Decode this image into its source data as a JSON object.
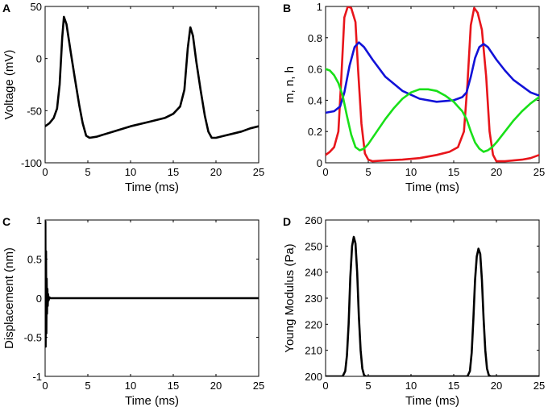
{
  "chart_data": [
    {
      "panel": "A",
      "type": "line",
      "xlabel": "Time (ms)",
      "ylabel": "Voltage (mV)",
      "xlim": [
        0,
        25
      ],
      "ylim": [
        -100,
        50
      ],
      "xticks": [
        0,
        5,
        10,
        15,
        20,
        25
      ],
      "yticks": [
        -100,
        -50,
        0,
        50
      ],
      "grid": false,
      "series": [
        {
          "name": "Voltage",
          "color": "#000000",
          "x": [
            0,
            0.5,
            1.0,
            1.4,
            1.7,
            2.0,
            2.2,
            2.5,
            3.0,
            3.5,
            4.0,
            4.4,
            4.8,
            5.2,
            6,
            8,
            10,
            12,
            14,
            15,
            15.8,
            16.3,
            16.7,
            17.0,
            17.3,
            17.7,
            18.2,
            18.7,
            19.1,
            19.5,
            20,
            21,
            22,
            23,
            24,
            25
          ],
          "y": [
            -65,
            -62,
            -57,
            -48,
            -25,
            20,
            40,
            33,
            6,
            -20,
            -45,
            -62,
            -74,
            -76,
            -75,
            -70,
            -65,
            -61,
            -57,
            -53,
            -46,
            -30,
            10,
            30,
            22,
            -3,
            -30,
            -55,
            -70,
            -76,
            -76,
            -74,
            -72,
            -70,
            -67,
            -65
          ]
        }
      ]
    },
    {
      "panel": "B",
      "type": "line",
      "xlabel": "Time (ms)",
      "ylabel": "m, n, h",
      "xlim": [
        0,
        25
      ],
      "ylim": [
        0,
        1
      ],
      "xticks": [
        0,
        5,
        10,
        15,
        20,
        25
      ],
      "yticks": [
        0,
        0.2,
        0.4,
        0.6,
        0.8,
        1
      ],
      "grid": false,
      "series": [
        {
          "name": "m",
          "color": "#e8151b",
          "x": [
            0,
            0.5,
            1.0,
            1.5,
            1.8,
            2.2,
            2.6,
            3.0,
            3.5,
            3.8,
            4.2,
            4.6,
            5.0,
            5.5,
            7,
            9,
            11,
            13,
            14.5,
            15.5,
            16.2,
            16.6,
            17.0,
            17.4,
            17.8,
            18.3,
            18.8,
            19.2,
            19.6,
            20,
            21,
            22,
            23,
            24,
            25
          ],
          "y": [
            0.05,
            0.07,
            0.1,
            0.2,
            0.5,
            0.93,
            1.0,
            0.99,
            0.9,
            0.6,
            0.25,
            0.06,
            0.02,
            0.01,
            0.015,
            0.02,
            0.03,
            0.05,
            0.07,
            0.1,
            0.2,
            0.5,
            0.88,
            0.99,
            0.96,
            0.85,
            0.55,
            0.2,
            0.05,
            0.01,
            0.01,
            0.015,
            0.02,
            0.03,
            0.05
          ]
        },
        {
          "name": "n",
          "color": "#1212d8",
          "x": [
            0,
            1,
            1.7,
            2.2,
            2.8,
            3.4,
            3.9,
            4.5,
            5.5,
            7,
            9,
            11,
            13,
            15,
            16,
            16.5,
            17,
            17.5,
            18,
            18.5,
            19,
            20,
            21,
            22,
            23,
            24,
            25
          ],
          "y": [
            0.32,
            0.33,
            0.36,
            0.45,
            0.62,
            0.74,
            0.77,
            0.74,
            0.66,
            0.55,
            0.46,
            0.41,
            0.39,
            0.4,
            0.42,
            0.45,
            0.55,
            0.67,
            0.74,
            0.76,
            0.74,
            0.66,
            0.59,
            0.53,
            0.49,
            0.45,
            0.43
          ]
        },
        {
          "name": "h",
          "color": "#19e019",
          "x": [
            0,
            0.5,
            1.0,
            1.5,
            2.0,
            2.5,
            3.0,
            3.5,
            4.0,
            4.5,
            5.0,
            6,
            7,
            8,
            9,
            10,
            11,
            12,
            13,
            14,
            15,
            15.5,
            16,
            16.5,
            17,
            17.5,
            18,
            18.5,
            19,
            19.5,
            20,
            21,
            22,
            23,
            24,
            25
          ],
          "y": [
            0.6,
            0.59,
            0.56,
            0.51,
            0.43,
            0.3,
            0.18,
            0.1,
            0.08,
            0.09,
            0.12,
            0.2,
            0.28,
            0.35,
            0.41,
            0.45,
            0.47,
            0.47,
            0.46,
            0.43,
            0.39,
            0.36,
            0.33,
            0.28,
            0.2,
            0.13,
            0.09,
            0.07,
            0.08,
            0.1,
            0.13,
            0.2,
            0.27,
            0.33,
            0.38,
            0.42
          ]
        }
      ]
    },
    {
      "panel": "C",
      "type": "line",
      "xlabel": "Time (ms)",
      "ylabel": "Displacement (nm)",
      "xlim": [
        0,
        25
      ],
      "ylim": [
        -1,
        1
      ],
      "xticks": [
        0,
        5,
        10,
        15,
        20,
        25
      ],
      "yticks": [
        -1,
        -0.5,
        0,
        0.5,
        1
      ],
      "ytick_labels": [
        "-1",
        "-0.5",
        "0",
        "0.5",
        "1"
      ],
      "grid": false,
      "series": [
        {
          "name": "Displacement",
          "color": "#000000",
          "x": [
            0,
            0.03,
            0.06,
            0.1,
            0.14,
            0.18,
            0.22,
            0.26,
            0.3,
            0.35,
            0.4,
            0.5,
            0.6,
            1,
            5,
            10,
            15,
            20,
            25
          ],
          "y": [
            0,
            0.98,
            -0.62,
            0.6,
            -0.45,
            0.25,
            -0.2,
            0.12,
            -0.1,
            0.05,
            -0.03,
            0.01,
            0,
            0,
            0,
            0,
            0,
            0,
            0
          ]
        }
      ]
    },
    {
      "panel": "D",
      "type": "line",
      "xlabel": "Time (ms)",
      "ylabel": "Young Modulus (Pa)",
      "xlim": [
        0,
        25
      ],
      "ylim": [
        200,
        260
      ],
      "xticks": [
        0,
        5,
        10,
        15,
        20,
        25
      ],
      "yticks": [
        200,
        210,
        220,
        230,
        240,
        250,
        260
      ],
      "grid": false,
      "series": [
        {
          "name": "Young Modulus",
          "color": "#000000",
          "x": [
            0,
            2.0,
            2.3,
            2.5,
            2.7,
            2.9,
            3.1,
            3.3,
            3.5,
            3.7,
            3.9,
            4.1,
            4.3,
            4.5,
            4.7,
            5,
            10,
            16.6,
            16.9,
            17.1,
            17.3,
            17.5,
            17.7,
            17.9,
            18.1,
            18.3,
            18.5,
            18.7,
            18.9,
            19.1,
            19.3,
            20,
            25
          ],
          "y": [
            200,
            200,
            202,
            208,
            220,
            238,
            250,
            253.5,
            251,
            240,
            223,
            210,
            203,
            200.5,
            200,
            200,
            200,
            200,
            202,
            209,
            222,
            237,
            246,
            249,
            247,
            237,
            222,
            210,
            203,
            200.5,
            200,
            200,
            200
          ]
        }
      ]
    }
  ]
}
